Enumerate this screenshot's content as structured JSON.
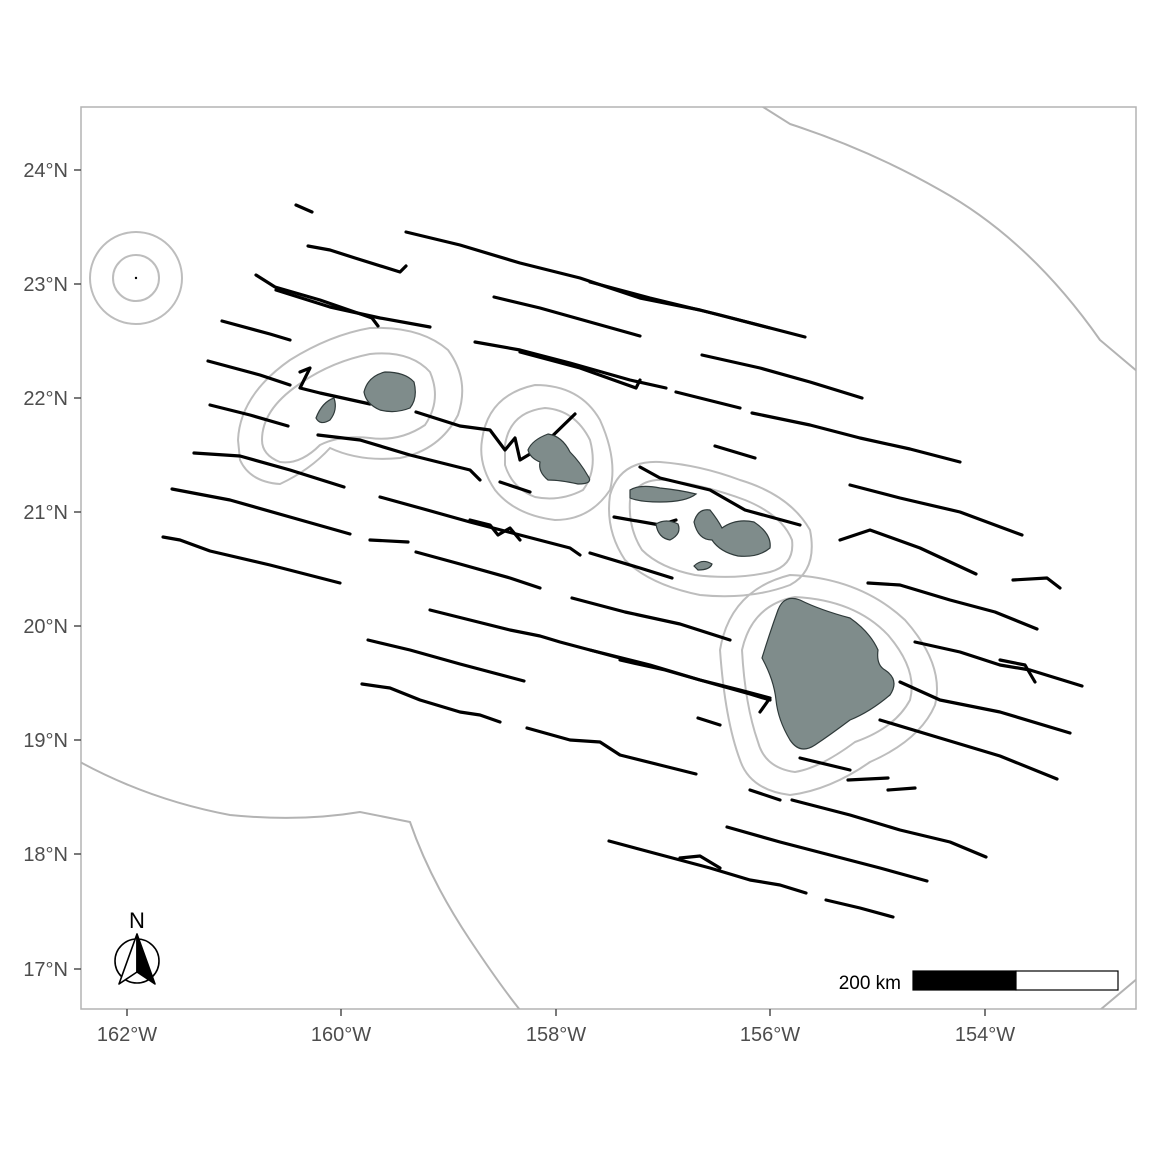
{
  "map": {
    "axes": {
      "x_ticks": [
        "162°W",
        "160°W",
        "158°W",
        "156°W",
        "154°W"
      ],
      "y_ticks": [
        "24°N",
        "23°N",
        "22°N",
        "21°N",
        "20°N",
        "19°N",
        "18°N",
        "17°N"
      ]
    },
    "scale_bar": {
      "label": "200 km"
    },
    "north_arrow": {
      "label": "N",
      "icon": "north-arrow-icon"
    },
    "colors": {
      "island_fill": "#7f8c8b",
      "island_stroke": "#2f3a3a",
      "buffer_stroke": "#bdbdbd",
      "eez_stroke": "#b3b3b3",
      "track_stroke": "#000000",
      "panel_border": "#b3b3b3"
    }
  }
}
